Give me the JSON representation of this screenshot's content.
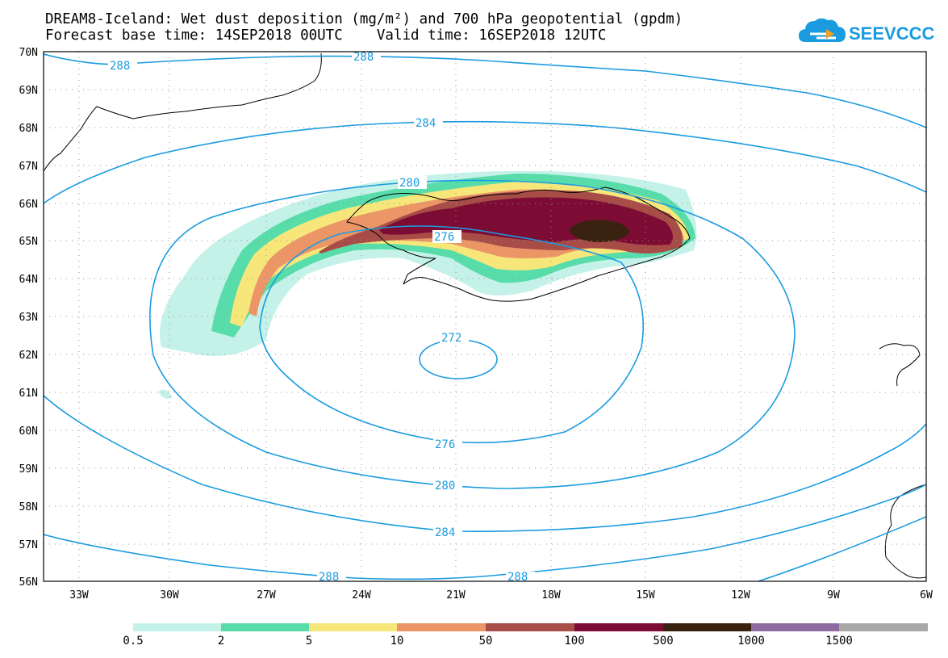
{
  "title_line1": "DREAM8-Iceland: Wet dust deposition (mg/m²) and 700 hPa geopotential (gpdm)",
  "title_line2": "Forecast base time: 14SEP2018 00UTC    Valid time: 16SEP2018 12UTC",
  "logo_text": "SEEVCCC",
  "lat_labels": [
    "70N",
    "69N",
    "68N",
    "67N",
    "66N",
    "65N",
    "64N",
    "63N",
    "62N",
    "61N",
    "60N",
    "59N",
    "58N",
    "57N",
    "56N"
  ],
  "lon_labels": [
    "33W",
    "30W",
    "27W",
    "24W",
    "21W",
    "18W",
    "15W",
    "12W",
    "9W",
    "6W"
  ],
  "contour_labels": [
    "288",
    "288",
    "284",
    "280",
    "276",
    "272",
    "276",
    "280",
    "284",
    "288",
    "288"
  ],
  "legend": {
    "labels": [
      "0.5",
      "2",
      "5",
      "10",
      "50",
      "100",
      "500",
      "1000",
      "1500"
    ],
    "colors": [
      "#c4f2e8",
      "#58dcaa",
      "#f7e77b",
      "#ec9668",
      "#a84c48",
      "#7d0c35",
      "#3a2210",
      "#8e6aa0",
      "#a8a8a8"
    ]
  },
  "colors": {
    "contour": "#1a9be0",
    "land": "#000000"
  }
}
